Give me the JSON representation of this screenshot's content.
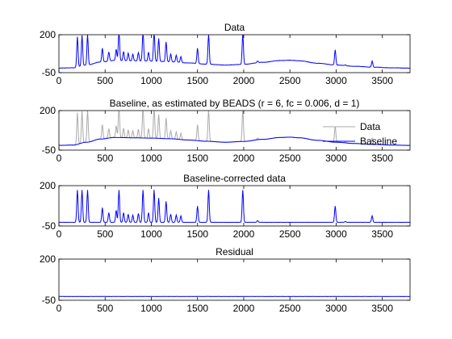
{
  "chart_data": [
    {
      "type": "line",
      "title": "Data",
      "xlim": [
        0,
        3800
      ],
      "ylim": [
        -50,
        200
      ],
      "xticks": [
        0,
        500,
        1000,
        1500,
        2000,
        2500,
        3000,
        3500
      ],
      "yticks": [
        -50,
        200
      ],
      "grid": false,
      "legend": null,
      "series": [
        {
          "color": "#0000ff",
          "baseline_points": [
            [
              0,
              -20
            ],
            [
              150,
              -18
            ],
            [
              300,
              0
            ],
            [
              450,
              20
            ],
            [
              600,
              30
            ],
            [
              800,
              28
            ],
            [
              1000,
              26
            ],
            [
              1200,
              22
            ],
            [
              1400,
              14
            ],
            [
              1600,
              6
            ],
            [
              1800,
              0
            ],
            [
              2000,
              5
            ],
            [
              2200,
              18
            ],
            [
              2400,
              30
            ],
            [
              2500,
              32
            ],
            [
              2600,
              28
            ],
            [
              2800,
              12
            ],
            [
              3000,
              0
            ],
            [
              3200,
              -8
            ],
            [
              3400,
              -14
            ],
            [
              3600,
              -18
            ],
            [
              3800,
              -20
            ]
          ],
          "peaks": [
            [
              200,
              200
            ],
            [
              250,
              200
            ],
            [
              310,
              200
            ],
            [
              470,
              90
            ],
            [
              540,
              60
            ],
            [
              620,
              75
            ],
            [
              650,
              200
            ],
            [
              700,
              60
            ],
            [
              750,
              50
            ],
            [
              800,
              45
            ],
            [
              860,
              55
            ],
            [
              910,
              200
            ],
            [
              970,
              60
            ],
            [
              1030,
              200
            ],
            [
              1080,
              150
            ],
            [
              1160,
              130
            ],
            [
              1210,
              50
            ],
            [
              1270,
              45
            ],
            [
              1320,
              40
            ],
            [
              1500,
              100
            ],
            [
              1620,
              200
            ],
            [
              1990,
              200
            ],
            [
              2150,
              10
            ],
            [
              2990,
              100
            ],
            [
              3100,
              5
            ],
            [
              3390,
              40
            ]
          ]
        }
      ]
    },
    {
      "type": "line",
      "title": "Baseline, as estimated by BEADS (r = 6, fc = 0.006, d = 1)",
      "xlim": [
        0,
        3800
      ],
      "ylim": [
        -50,
        200
      ],
      "xticks": [
        0,
        500,
        1000,
        1500,
        2000,
        2500,
        3000,
        3500
      ],
      "yticks": [
        -50,
        200
      ],
      "grid": false,
      "legend": "right",
      "series": [
        {
          "name": "Data",
          "color": "#aaaaaa",
          "style": "data"
        },
        {
          "name": "Baseline",
          "color": "#0000ff",
          "style": "baseline"
        }
      ]
    },
    {
      "type": "line",
      "title": "Baseline-corrected data",
      "xlim": [
        0,
        3800
      ],
      "ylim": [
        -50,
        200
      ],
      "xticks": [
        0,
        500,
        1000,
        1500,
        2000,
        2500,
        3000,
        3500
      ],
      "yticks": [
        -50,
        200
      ],
      "grid": false,
      "legend": null,
      "series": [
        {
          "color": "#0000ff",
          "style": "corrected"
        }
      ]
    },
    {
      "type": "line",
      "title": "Residual",
      "xlim": [
        0,
        3800
      ],
      "ylim": [
        -50,
        200
      ],
      "xticks": [
        0,
        500,
        1000,
        1500,
        2000,
        2500,
        3000,
        3500
      ],
      "yticks": [
        -50,
        200
      ],
      "grid": false,
      "legend": null,
      "series": [
        {
          "color": "#0000ff",
          "style": "residual",
          "level": -27
        }
      ]
    }
  ]
}
